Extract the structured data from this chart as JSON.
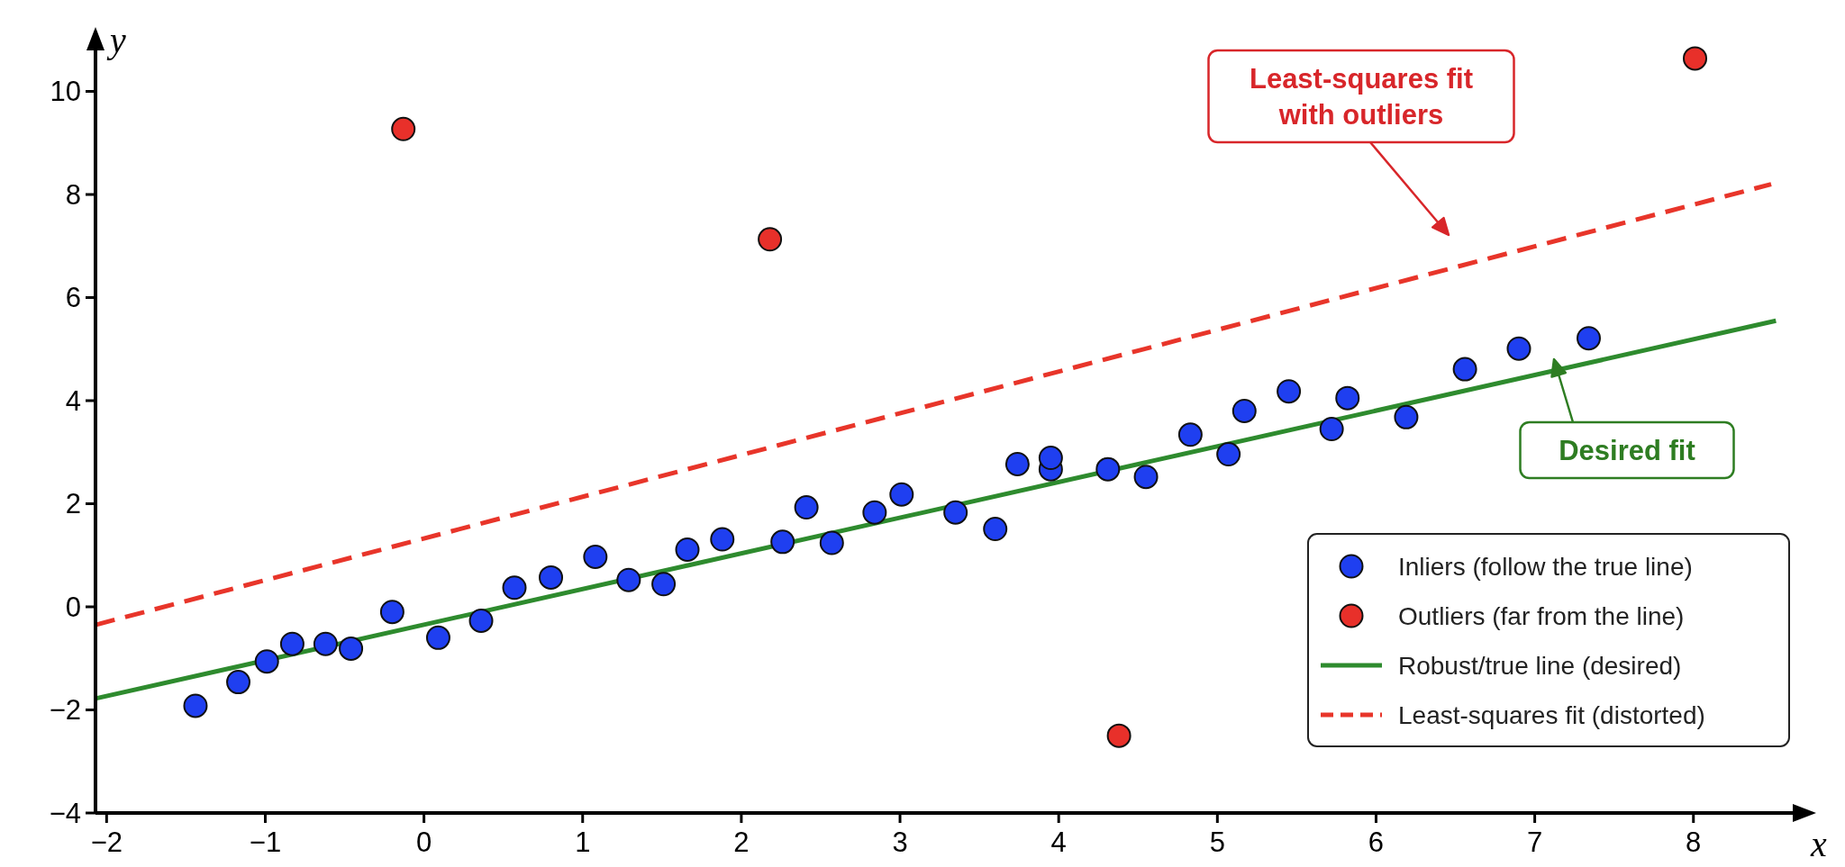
{
  "chart_data": {
    "type": "scatter",
    "xlabel": "x",
    "ylabel": "y",
    "xlim": [
      -2.07,
      8.66
    ],
    "ylim": [
      -4,
      10.9
    ],
    "xticks": [
      {
        "value": -2,
        "label": "−2"
      },
      {
        "value": -1,
        "label": "−1"
      },
      0,
      1,
      2,
      3,
      4,
      5,
      6,
      7,
      8
    ],
    "yticks": [
      {
        "value": -4,
        "label": "−4"
      },
      {
        "value": -2,
        "label": "−2"
      },
      0,
      2,
      4,
      6,
      8,
      10
    ],
    "grid": false,
    "legend": "bottom right",
    "marker": "circle",
    "series": [
      {
        "name": "Inliers (follow the true line)",
        "color": "#1f3ff0",
        "x": [
          -1.44,
          -1.17,
          -0.99,
          -0.83,
          -0.62,
          -0.46,
          -0.2,
          0.09,
          0.36,
          0.57,
          0.8,
          1.08,
          1.29,
          1.51,
          1.66,
          1.88,
          2.26,
          2.41,
          2.57,
          2.84,
          3.01,
          3.35,
          3.6,
          3.74,
          3.95,
          3.95,
          4.31,
          4.55,
          4.83,
          5.07,
          5.17,
          5.45,
          5.72,
          5.82,
          6.19,
          6.56,
          6.9,
          7.34
        ],
        "values": [
          -1.92,
          -1.46,
          -1.06,
          -0.72,
          -0.72,
          -0.81,
          -0.1,
          -0.6,
          -0.27,
          0.37,
          0.57,
          0.97,
          0.52,
          0.44,
          1.11,
          1.31,
          1.26,
          1.93,
          1.24,
          1.83,
          2.18,
          1.83,
          1.51,
          2.77,
          2.67,
          2.89,
          2.67,
          2.52,
          3.34,
          2.96,
          3.8,
          4.18,
          3.45,
          4.05,
          3.68,
          4.61,
          5.01,
          5.21
        ]
      },
      {
        "name": "Outliers (far from the line)",
        "color": "#e8302a",
        "x": [
          -0.13,
          2.18,
          4.38,
          8.01
        ],
        "values": [
          9.27,
          7.13,
          -2.5,
          10.64
        ]
      },
      {
        "name": "Robust/true line (desired)",
        "type": "line",
        "color": "#2e8b2e",
        "line_style": "solid",
        "marker": "none",
        "x": [
          -2.07,
          8.52
        ],
        "values": [
          -1.78,
          5.55
        ]
      },
      {
        "name": "Least-squares fit (distorted)",
        "type": "line",
        "color": "#e8352a",
        "line_style": "dashed",
        "marker": "none",
        "x": [
          -2.07,
          8.49
        ],
        "values": [
          -0.35,
          8.2
        ]
      }
    ],
    "annotations": [
      "Least-squares fit\nwith outliers",
      "Desired fit"
    ]
  }
}
